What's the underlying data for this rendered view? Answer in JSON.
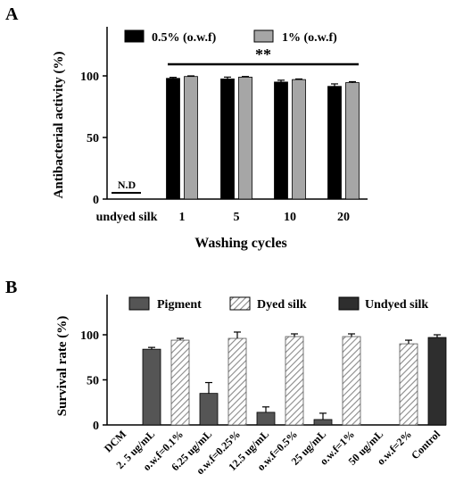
{
  "colors": {
    "black": "#000000",
    "gray": "#a6a6a6",
    "pigment": "#555555",
    "hatch": "#8a8a8a",
    "undyed": "#2e2e2e"
  },
  "chart_data": [
    {
      "panel": "A",
      "type": "bar",
      "xlabel": "Washing cycles",
      "ylabel": "Antibacterial activity (%)",
      "ylim": [
        0,
        120
      ],
      "yticks": [
        0,
        50,
        100
      ],
      "categories": [
        "undyed silk",
        "1",
        "5",
        "10",
        "20"
      ],
      "series": [
        {
          "name": "0.5% (o.w.f)",
          "values": [
            0,
            98,
            97.5,
            95,
            91.5
          ],
          "errors": [
            0,
            0.8,
            1.5,
            1.5,
            2.0
          ]
        },
        {
          "name": "1% (o.w.f)",
          "values": [
            0,
            99.5,
            99,
            97,
            94.5
          ],
          "errors": [
            0,
            0.5,
            0.5,
            0.5,
            0.8
          ]
        }
      ],
      "annotations": {
        "nd_label": "N.D",
        "significance": "**"
      },
      "legend": "top"
    },
    {
      "panel": "B",
      "type": "bar",
      "ylabel": "Survival rate (%)",
      "ylim": [
        0,
        125
      ],
      "yticks": [
        0,
        50,
        100
      ],
      "categories": [
        "DCM",
        "2. 5 ug/mL",
        "o.w.f=0.1%",
        "6.25 ug/mL",
        "o.w.f=0.25%",
        "12.5 ug/mL",
        "o.w.f=0.5%",
        "25 ug/mL",
        "o.w.f=1%",
        "50 ug/mL",
        "o.w.f=2%",
        "Control"
      ],
      "series": [
        {
          "name": "Pigment",
          "style": "solid-gray",
          "points": [
            [
              1,
              84,
              2
            ],
            [
              3,
              35,
              12
            ],
            [
              5,
              14,
              6
            ],
            [
              7,
              6,
              7
            ],
            [
              9,
              0,
              0
            ]
          ]
        },
        {
          "name": "Dyed silk",
          "style": "hatched",
          "points": [
            [
              2,
              94,
              2
            ],
            [
              4,
              96,
              7
            ],
            [
              6,
              98,
              3
            ],
            [
              8,
              98,
              3
            ],
            [
              10,
              90,
              4
            ]
          ]
        },
        {
          "name": "Undyed silk",
          "style": "solid-dark",
          "points": [
            [
              11,
              97,
              3
            ]
          ]
        }
      ],
      "legend": "top"
    }
  ]
}
